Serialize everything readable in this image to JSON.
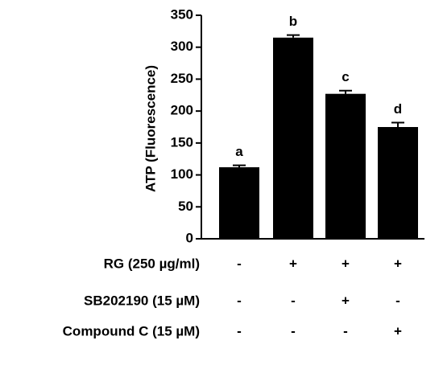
{
  "chart_data": {
    "type": "bar",
    "y_label": "ATP (Fluorescence)",
    "categories": [
      null,
      null,
      null,
      null
    ],
    "values": [
      112,
      315,
      227,
      175
    ],
    "errors": [
      3,
      4,
      5,
      7
    ],
    "value_labels": [
      "a",
      "b",
      "c",
      "d"
    ],
    "color": "#000000",
    "ylim": [
      0,
      350
    ],
    "yticks": [
      0,
      50,
      100,
      150,
      200,
      250,
      300,
      350
    ],
    "treatments": [
      {
        "label": "RG (250 µg/ml)",
        "signs": [
          "-",
          "+",
          "+",
          "+"
        ]
      },
      {
        "label": "SB202190 (15 µM)",
        "signs": [
          "-",
          "-",
          "+",
          "-"
        ]
      },
      {
        "label": "Compound C (15 µM)",
        "signs": [
          "-",
          "-",
          "-",
          "+"
        ]
      }
    ]
  }
}
